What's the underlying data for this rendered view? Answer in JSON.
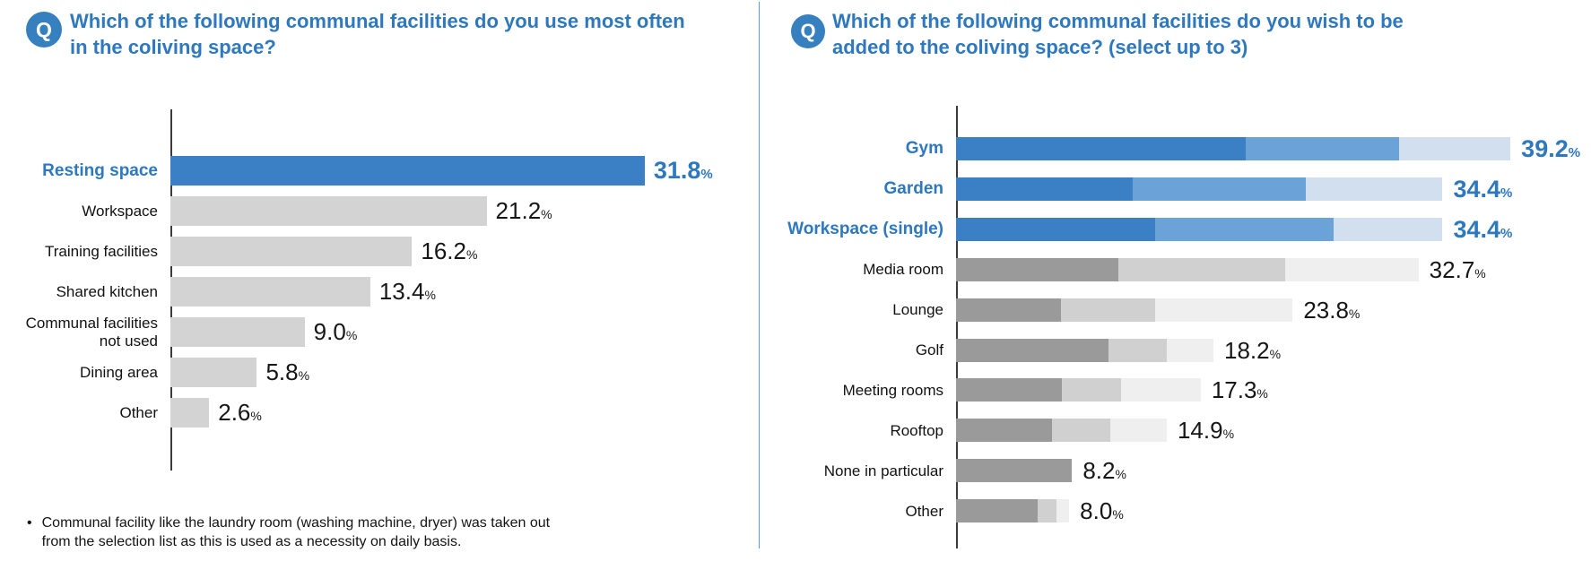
{
  "left_panel": {
    "q_label": "Q",
    "footnote_bullet": "•",
    "footnote_text": "Communal facility like the laundry room (washing machine, dryer) was taken out\nfrom the selection list as this is used as a necessity on daily basis."
  },
  "right_panel": {
    "q_label": "Q"
  },
  "colors": {
    "accent_blue": "#2e78be",
    "badge_blue": "#3780c0",
    "bar_blue_dark": "#3b80c4",
    "bar_blue_medium": "#6ba3d8",
    "bar_blue_light": "#d2dfee",
    "bar_gray_plain": "#d3d3d3",
    "bar_gray_dark": "#9a9a9a",
    "bar_gray_medium": "#d0d0d0",
    "bar_gray_light": "#efefef",
    "axis": "#3b3b3b",
    "divider_blue": "#5b9bd5",
    "text_black": "#161616"
  },
  "chart_data": [
    {
      "type": "bar",
      "orientation": "horizontal",
      "title": "Which of the following communal facilities do you use most often\nin the coliving space?",
      "categories": [
        "Resting space",
        "Workspace",
        "Training facilities",
        "Shared kitchen",
        "Communal facilities\nnot used",
        "Dining area",
        "Other"
      ],
      "values": [
        31.8,
        21.2,
        16.2,
        13.4,
        9.0,
        5.8,
        2.6
      ],
      "unit": "%",
      "xlim": [
        0,
        36
      ],
      "grid": false,
      "legend": "none",
      "value_labels_shown": true,
      "bar_color": "#d3d3d3",
      "highlight_indices": [
        0
      ],
      "highlight_color": "#3b80c4"
    },
    {
      "type": "bar",
      "subtype": "stacked",
      "orientation": "horizontal",
      "title": "Which of the following communal facilities do you wish to be\nadded to the coliving space? (select up to 3)",
      "categories": [
        "Gym",
        "Garden",
        "Workspace (single)",
        "Media room",
        "Lounge",
        "Golf",
        "Meeting rooms",
        "Rooftop",
        "None in particular",
        "Other"
      ],
      "totals": [
        39.2,
        34.4,
        34.4,
        32.7,
        23.8,
        18.2,
        17.3,
        14.9,
        8.2,
        8.0
      ],
      "unit": "%",
      "xlim": [
        0,
        42
      ],
      "grid": false,
      "legend": "none",
      "value_labels_shown": true,
      "highlight_indices": [
        0,
        1,
        2
      ],
      "series": [
        {
          "name": "segment-1",
          "color": "#9a9a9a",
          "color_highlighted": "#3b80c4",
          "values": [
            20.5,
            12.5,
            14.1,
            11.5,
            7.4,
            10.8,
            7.5,
            6.8,
            8.2,
            5.8
          ]
        },
        {
          "name": "segment-2",
          "color": "#d0d0d0",
          "color_highlighted": "#6ba3d8",
          "values": [
            10.8,
            12.2,
            12.6,
            11.8,
            6.7,
            4.1,
            4.2,
            4.1,
            0,
            1.3
          ]
        },
        {
          "name": "segment-3",
          "color": "#efefef",
          "color_highlighted": "#d2dfee",
          "values": [
            7.9,
            9.7,
            7.7,
            9.4,
            9.7,
            3.3,
            5.6,
            4.0,
            0,
            0.9
          ]
        }
      ]
    }
  ]
}
